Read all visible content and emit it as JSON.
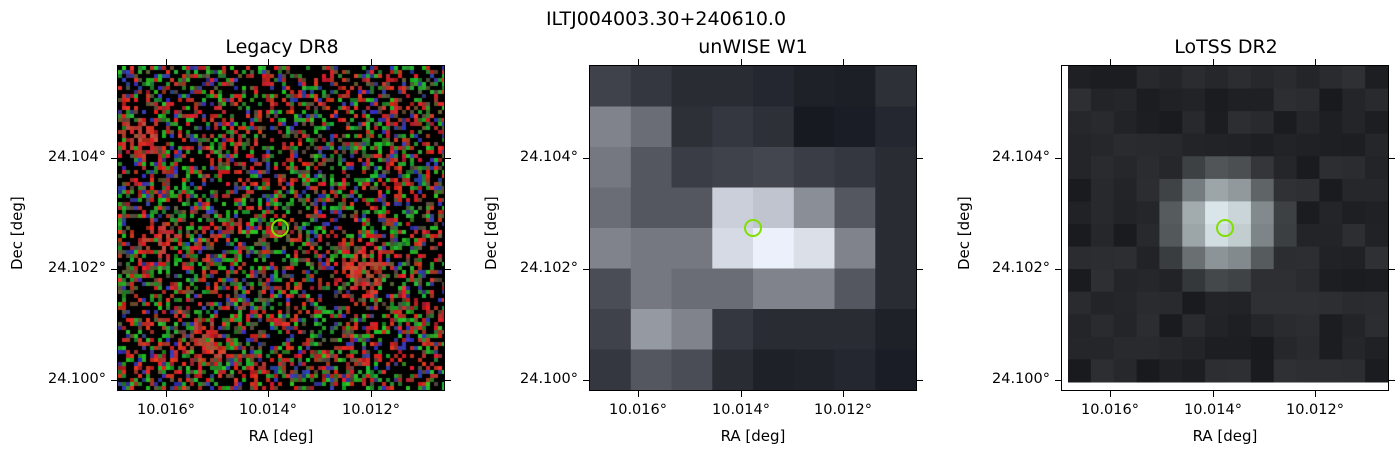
{
  "figure": {
    "suptitle": "ILTJ004003.30+240610.0"
  },
  "panels": [
    {
      "id": "legacy",
      "title": "Legacy DR8",
      "xlabel": "RA [deg]",
      "ylabel": "Dec [deg]",
      "xticks": [
        "10.016°",
        "10.014°",
        "10.012°"
      ],
      "yticks": [
        "24.104°",
        "24.102°",
        "24.100°"
      ],
      "image_kind": "rgb-noise"
    },
    {
      "id": "unwise",
      "title": "unWISE W1",
      "xlabel": "RA [deg]",
      "ylabel": "Dec [deg]",
      "xticks": [
        "10.016°",
        "10.014°",
        "10.012°"
      ],
      "yticks": [
        "24.104°",
        "24.102°",
        "24.100°"
      ],
      "image_kind": "coarse-grayscale"
    },
    {
      "id": "lotss",
      "title": "LoTSS DR2",
      "xlabel": "RA [deg]",
      "ylabel": "Dec [deg]",
      "xticks": [
        "10.016°",
        "10.014°",
        "10.012°"
      ],
      "yticks": [
        "24.104°",
        "24.102°",
        "24.100°"
      ],
      "image_kind": "radio-blob"
    }
  ],
  "colors": {
    "marker": "#7fe000",
    "rgb_red": "#c0202a",
    "rgb_green": "#25a12a",
    "rgb_blue": "#2f3fa0"
  }
}
